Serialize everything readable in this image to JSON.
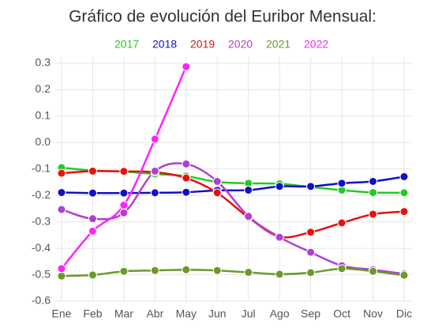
{
  "chart_data": {
    "type": "line",
    "title": "Gráfico de evolución del Euribor Mensual:",
    "categories": [
      "Ene",
      "Feb",
      "Mar",
      "Abr",
      "May",
      "Jun",
      "Jul",
      "Ago",
      "Sep",
      "Oct",
      "Nov",
      "Dic"
    ],
    "series": [
      {
        "name": "2017",
        "color": "#22cc22",
        "values": [
          -0.095,
          -0.106,
          -0.11,
          -0.119,
          -0.127,
          -0.149,
          -0.154,
          -0.156,
          -0.168,
          -0.18,
          -0.189,
          -0.19
        ]
      },
      {
        "name": "2018",
        "color": "#1010c8",
        "values": [
          -0.189,
          -0.191,
          -0.191,
          -0.19,
          -0.188,
          -0.181,
          -0.18,
          -0.166,
          -0.166,
          -0.154,
          -0.147,
          -0.129
        ]
      },
      {
        "name": "2019",
        "color": "#e81010",
        "values": [
          -0.116,
          -0.108,
          -0.109,
          -0.112,
          -0.134,
          -0.19,
          -0.283,
          -0.356,
          -0.339,
          -0.304,
          -0.271,
          -0.261
        ]
      },
      {
        "name": "2020",
        "color": "#b040d0",
        "values": [
          -0.253,
          -0.288,
          -0.266,
          -0.108,
          -0.081,
          -0.147,
          -0.279,
          -0.358,
          -0.415,
          -0.466,
          -0.481,
          -0.497
        ]
      },
      {
        "name": "2021",
        "color": "#6a9a2a",
        "values": [
          -0.505,
          -0.501,
          -0.487,
          -0.484,
          -0.481,
          -0.484,
          -0.491,
          -0.498,
          -0.492,
          -0.477,
          -0.487,
          -0.502
        ]
      },
      {
        "name": "2022",
        "color": "#ff22ff",
        "values": [
          -0.477,
          -0.335,
          -0.237,
          0.013,
          0.287,
          null,
          null,
          null,
          null,
          null,
          null,
          null
        ]
      }
    ],
    "ylim": [
      -0.6,
      0.3
    ],
    "yticks": [
      -0.6,
      -0.5,
      -0.4,
      -0.3,
      -0.2,
      -0.1,
      {
        "value": 0,
        "label": "0.0"
      },
      0.1,
      0.2,
      0.3
    ],
    "grid": true,
    "legend": "top"
  }
}
